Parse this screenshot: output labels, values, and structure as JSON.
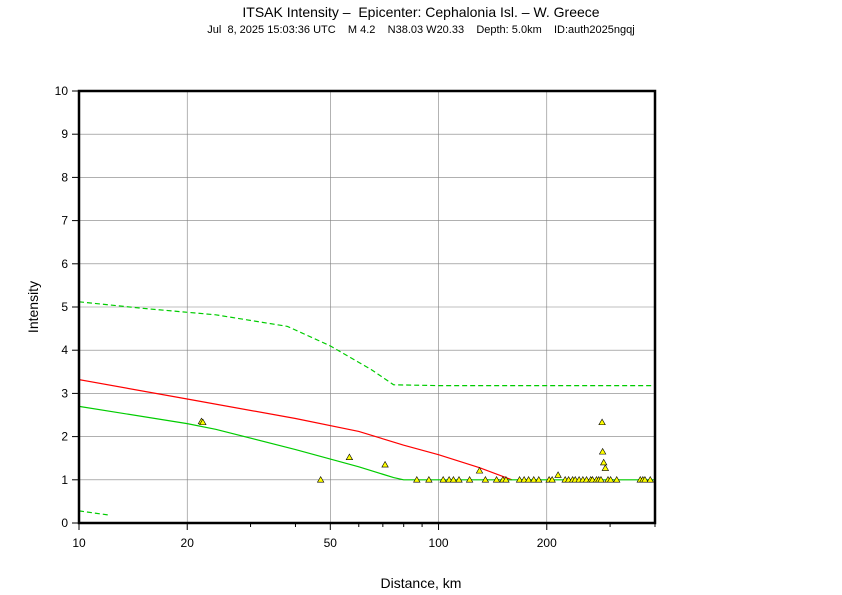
{
  "header": {
    "title": "ITSAK Intensity –  Epicenter: Cephalonia Isl. – W. Greece",
    "subtitle": "Jul  8, 2025 15:03:36 UTC    M 4.2    N38.03 W20.33    Depth: 5.0km    ID:auth2025ngqj"
  },
  "chart_data": {
    "type": "scatter",
    "title": "ITSAK Intensity –  Epicenter: Cephalonia Isl. – W. Greece",
    "xlabel": "Distance, km",
    "ylabel": "Intensity",
    "x_scale": "log",
    "xlim": [
      10,
      400
    ],
    "ylim": [
      0,
      10
    ],
    "grid": true,
    "x_ticks": [
      10,
      20,
      50,
      100,
      200
    ],
    "y_ticks": [
      0,
      1,
      2,
      3,
      4,
      5,
      6,
      7,
      8,
      9,
      10
    ],
    "colors": {
      "median": "#ff0000",
      "bounds": "#00cc00",
      "points_fill": "#ffff00",
      "points_edge": "#000000",
      "grid": "#808080"
    },
    "curves": [
      {
        "style": "solid",
        "color": "#ff0000",
        "x": [
          10,
          20,
          40,
          60,
          80,
          100,
          130,
          160
        ],
        "y": [
          3.32,
          2.87,
          2.42,
          2.12,
          1.8,
          1.58,
          1.28,
          1.0
        ]
      },
      {
        "style": "solid",
        "color": "#00cc00",
        "x": [
          10,
          20,
          24,
          40,
          60,
          75,
          80,
          160,
          400
        ],
        "y": [
          2.7,
          2.3,
          2.17,
          1.7,
          1.3,
          1.05,
          1.0,
          1.0,
          1.0
        ]
      },
      {
        "style": "dashed",
        "color": "#00cc00",
        "x": [
          10,
          15,
          24,
          38,
          50,
          65,
          75,
          100,
          400
        ],
        "y": [
          5.12,
          4.97,
          4.82,
          4.55,
          4.1,
          3.55,
          3.2,
          3.18,
          3.18
        ]
      },
      {
        "style": "dashed",
        "color": "#00cc00",
        "x": [
          10,
          12.2
        ],
        "y": [
          0.28,
          0.18
        ]
      }
    ],
    "points": {
      "x": [
        21.9,
        22.1,
        47,
        56.5,
        71,
        87,
        94,
        103,
        107,
        110,
        114,
        122,
        130,
        135,
        145,
        151,
        154,
        168,
        173,
        178,
        184,
        190,
        203,
        207,
        215,
        225,
        230,
        236,
        240,
        246,
        252,
        258,
        265,
        268,
        275,
        279,
        283,
        285,
        286,
        288,
        291,
        296,
        301,
        313,
        364,
        370,
        375,
        388
      ],
      "y": [
        2.35,
        2.33,
        1.0,
        1.52,
        1.35,
        1.0,
        1.0,
        1.0,
        1.0,
        1.0,
        1.0,
        1.0,
        1.21,
        1.0,
        1.0,
        1.0,
        1.0,
        1.0,
        1.0,
        1.0,
        1.0,
        1.0,
        1.0,
        1.0,
        1.11,
        1.0,
        1.0,
        1.0,
        1.0,
        1.0,
        1.0,
        1.0,
        1.0,
        1.0,
        1.0,
        1.0,
        1.0,
        2.33,
        1.65,
        1.4,
        1.27,
        1.0,
        1.0,
        1.0,
        1.0,
        1.0,
        1.0,
        1.0
      ]
    }
  }
}
